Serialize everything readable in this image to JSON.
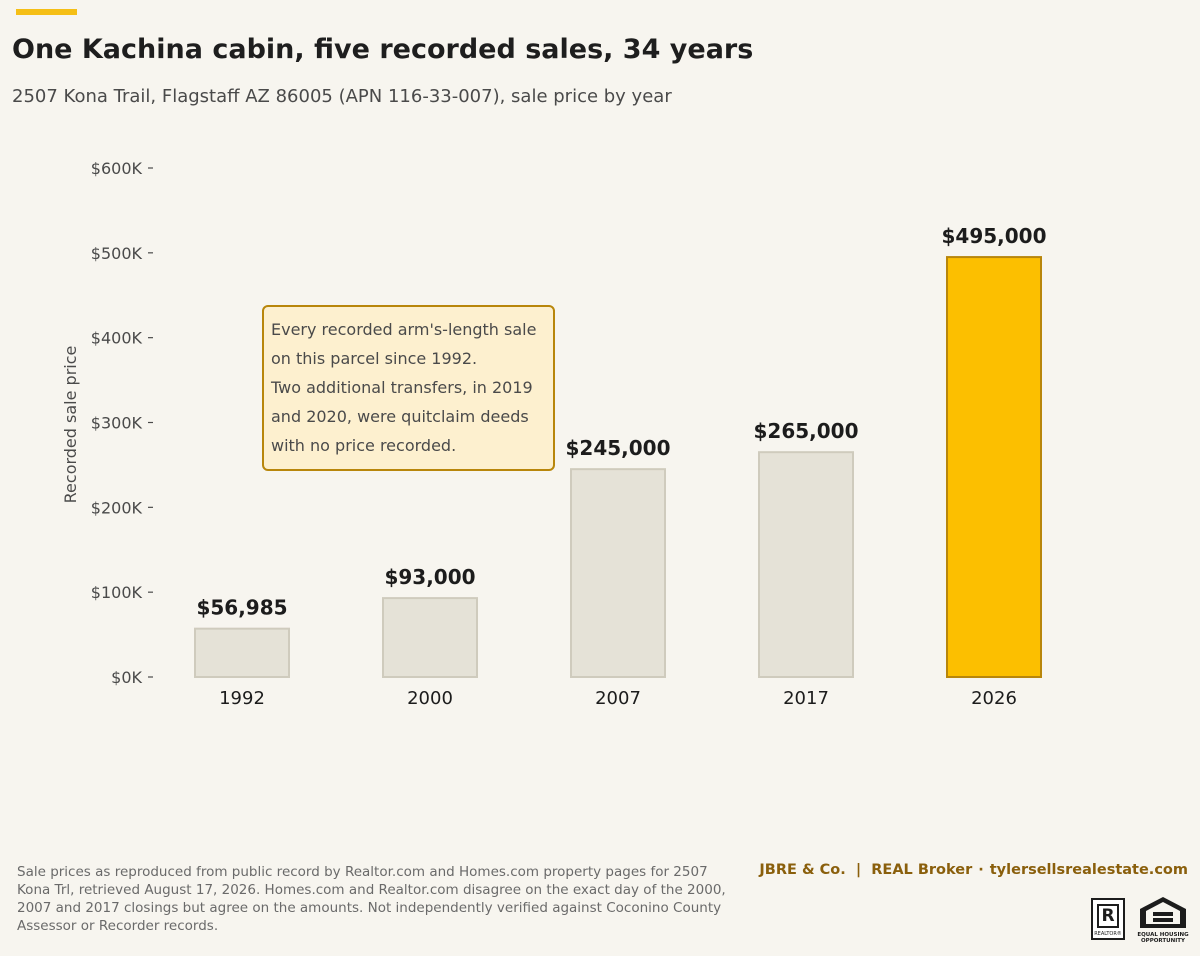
{
  "header": {
    "title": "One Kachina cabin, five recorded sales, 34 years",
    "subtitle": "2507 Kona Trail, Flagstaff AZ 86005 (APN 116-33-007), sale price by year",
    "accent_color": "#f5bf16"
  },
  "annotation": {
    "lines": [
      "Every recorded arm's-length sale",
      "on this parcel since 1992.",
      "Two additional transfers, in 2019",
      "and 2020, were quitclaim deeds",
      "with no price recorded."
    ]
  },
  "footer": {
    "note": "Sale prices as reproduced from public record by Realtor.com and Homes.com property pages for 2507 Kona Trl, retrieved August 17, 2026. Homes.com and Realtor.com disagree on the exact day of the 2000, 2007 and 2017 closings but agree on the amounts. Not independently verified against Coconino County Assessor or Recorder records.",
    "brand_name": "JBRE & Co.  |  REAL Broker",
    "brand_sep": "·",
    "brand_site": "tylersellsrealestate.com",
    "logos": {
      "realtor_letter": "R",
      "realtor_word": "REALTOR®",
      "eho_word_1": "EQUAL HOUSING",
      "eho_word_2": "OPPORTUNITY"
    }
  },
  "chart_data": {
    "type": "bar",
    "title": "One Kachina cabin, five recorded sales, 34 years",
    "subtitle": "2507 Kona Trail, Flagstaff AZ 86005 (APN 116-33-007), sale price by year",
    "xlabel": "",
    "ylabel": "Recorded sale price",
    "categories": [
      "1992",
      "2000",
      "2007",
      "2017",
      "2026"
    ],
    "values": [
      56985,
      93000,
      245000,
      265000,
      495000
    ],
    "value_labels": [
      "$56,985",
      "$93,000",
      "$245,000",
      "$265,000",
      "$495,000"
    ],
    "ylim": [
      0,
      600000
    ],
    "yticks": [
      0,
      100000,
      200000,
      300000,
      400000,
      500000,
      600000
    ],
    "ytick_labels": [
      "$0K",
      "$100K",
      "$200K",
      "$300K",
      "$400K",
      "$500K",
      "$600K"
    ],
    "grid": false,
    "colors": {
      "bar": "#e5e2d7",
      "bar_edge": "#cfcbbd",
      "highlight": "#fcbf00",
      "highlight_edge": "#b8860b"
    },
    "highlight_index": 4
  }
}
